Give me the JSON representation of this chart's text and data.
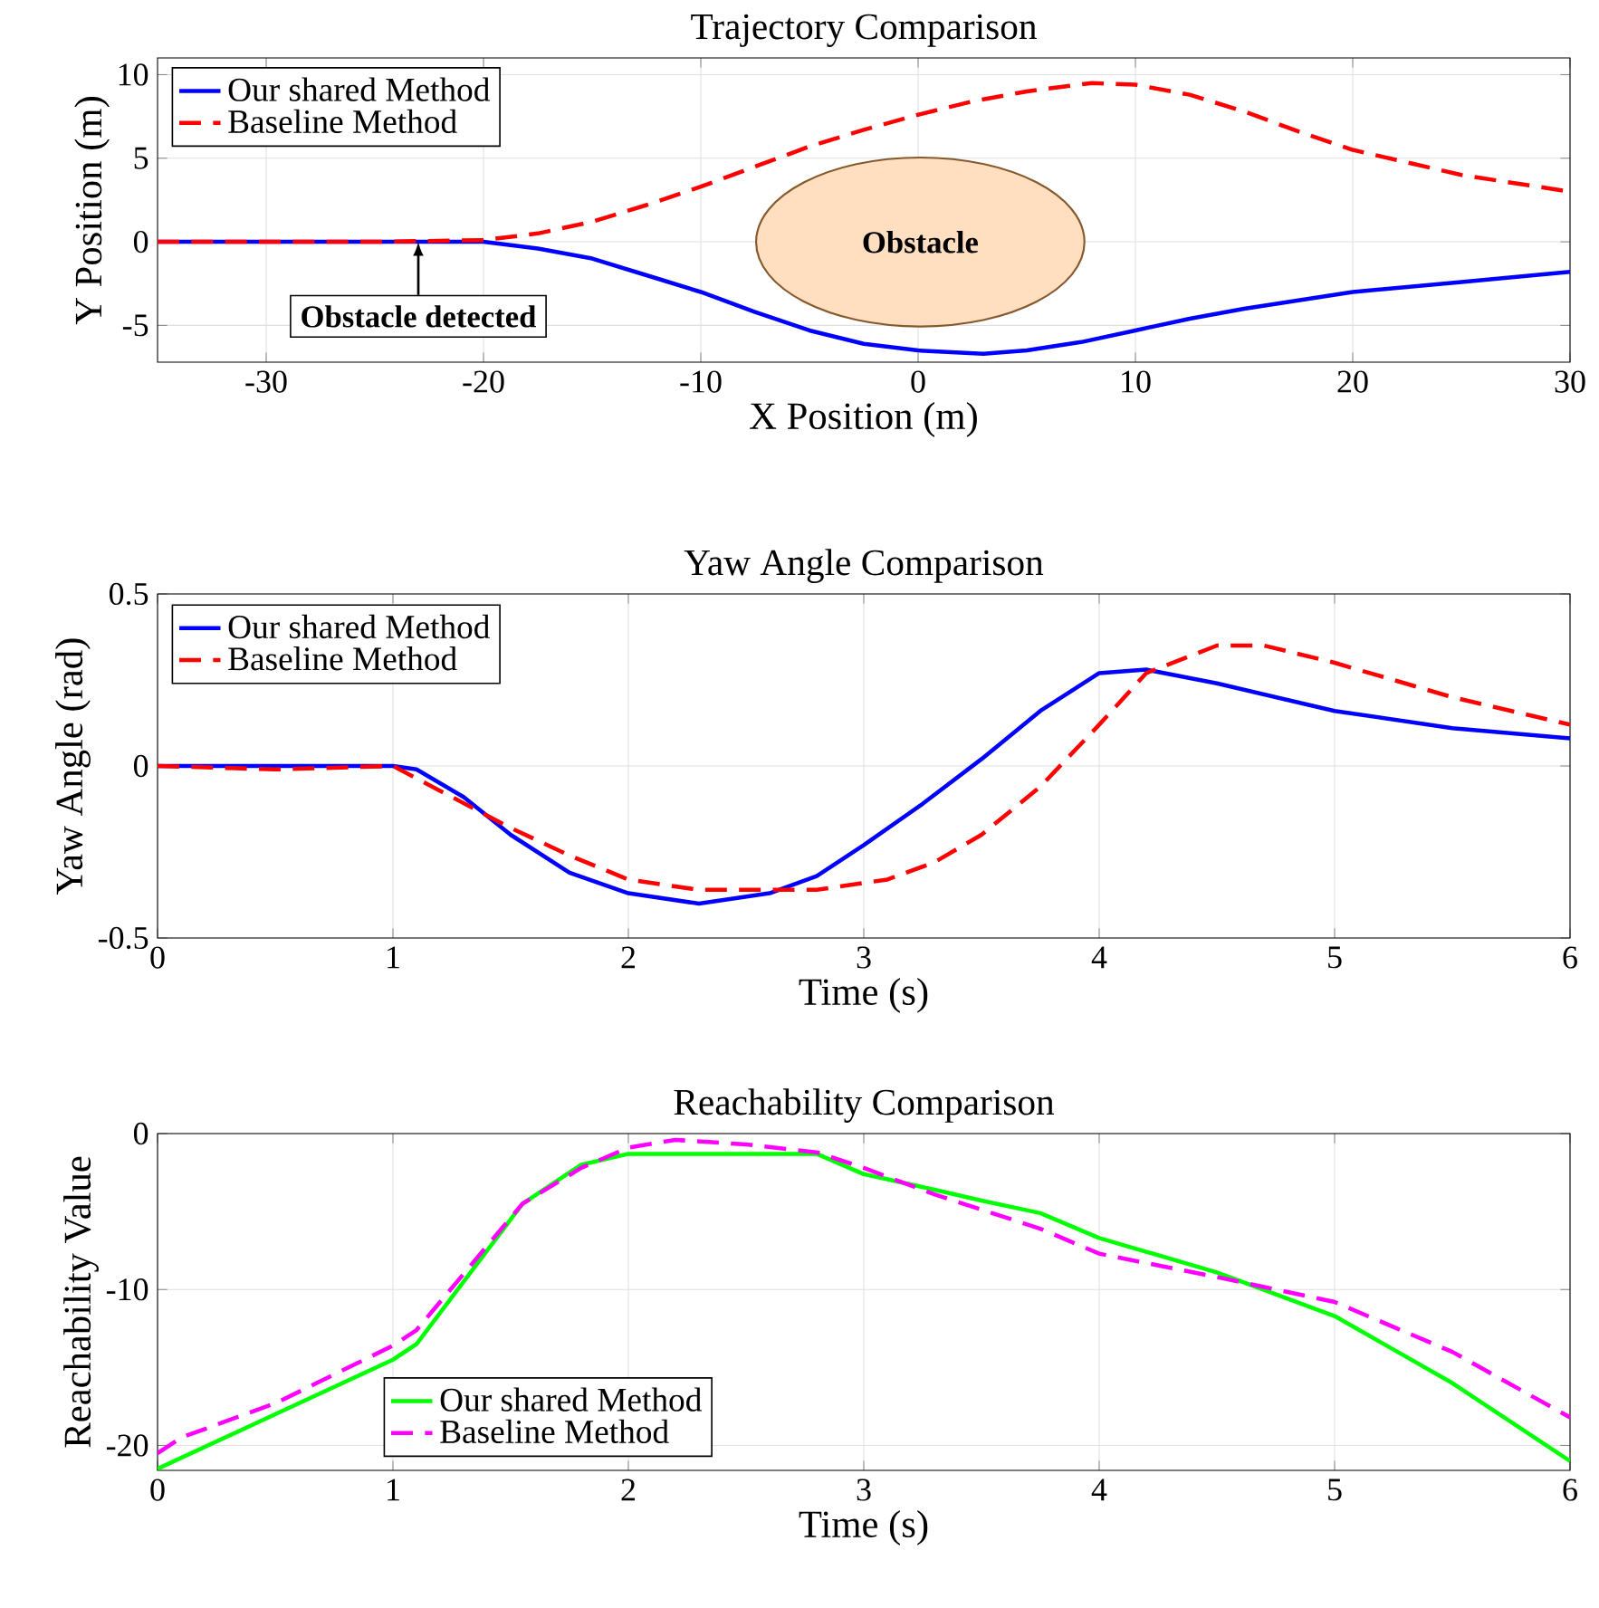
{
  "chart_data": [
    {
      "type": "line",
      "title": "Trajectory Comparison",
      "xlabel": "X Position (m)",
      "ylabel": "Y Position (m)",
      "xlim": [
        -35,
        30
      ],
      "ylim": [
        -7.2,
        11
      ],
      "xticks": [
        -30,
        -20,
        -10,
        0,
        10,
        20,
        30
      ],
      "yticks": [
        -5,
        0,
        5,
        10
      ],
      "grid": true,
      "legend": "top left",
      "marker": "none",
      "series": [
        {
          "name": "Our shared Method",
          "color": "#0000ff",
          "line_style": "solid",
          "x": [
            -35,
            -30,
            -25,
            -20,
            -17.5,
            -15,
            -12.5,
            -10,
            -7.5,
            -5,
            -2.5,
            0,
            3,
            5,
            7.5,
            10,
            12.5,
            15,
            20,
            25,
            30
          ],
          "values": [
            0,
            0,
            0,
            0,
            -0.4,
            -1,
            -2,
            -3,
            -4.2,
            -5.3,
            -6.1,
            -6.5,
            -6.7,
            -6.5,
            -6.0,
            -5.3,
            -4.6,
            -4.0,
            -3.0,
            -2.4,
            -1.8
          ]
        },
        {
          "name": "Baseline Method",
          "color": "#ff0000",
          "line_style": "dashed",
          "x": [
            -35,
            -30,
            -25,
            -20,
            -17.5,
            -15,
            -12.5,
            -10,
            -7.5,
            -5,
            -2.5,
            0,
            2.5,
            5,
            8,
            10,
            12.5,
            15,
            17.5,
            20,
            25,
            30
          ],
          "values": [
            0,
            0,
            0,
            0.1,
            0.5,
            1.2,
            2.2,
            3.3,
            4.5,
            5.7,
            6.7,
            7.6,
            8.4,
            9.0,
            9.5,
            9.4,
            8.8,
            7.8,
            6.6,
            5.5,
            4.0,
            3.0
          ]
        }
      ],
      "annotations": [
        "Obstacle",
        {
          "text": "Obstacle detected",
          "x": -23,
          "y": 0
        }
      ]
    },
    {
      "type": "line",
      "title": "Yaw Angle Comparison",
      "xlabel": "Time (s)",
      "ylabel": "Yaw Angle (rad)",
      "xlim": [
        0,
        6
      ],
      "ylim": [
        -0.5,
        0.5
      ],
      "xticks": [
        0,
        1,
        2,
        3,
        4,
        5,
        6
      ],
      "yticks": [
        -0.5,
        0,
        0.5
      ],
      "grid": true,
      "legend": "top left",
      "marker": "none",
      "series": [
        {
          "name": "Our shared Method",
          "color": "#0000ff",
          "line_style": "solid",
          "x": [
            0,
            0.5,
            1,
            1.1,
            1.3,
            1.5,
            1.75,
            2,
            2.3,
            2.6,
            2.8,
            3,
            3.25,
            3.5,
            3.75,
            4,
            4.2,
            4.5,
            5,
            5.5,
            6
          ],
          "values": [
            0,
            0,
            0,
            -0.01,
            -0.09,
            -0.2,
            -0.31,
            -0.37,
            -0.4,
            -0.37,
            -0.32,
            -0.23,
            -0.11,
            0.02,
            0.16,
            0.27,
            0.28,
            0.24,
            0.16,
            0.11,
            0.08
          ]
        },
        {
          "name": "Baseline Method",
          "color": "#ff0000",
          "line_style": "dashed",
          "x": [
            0,
            0.5,
            1,
            1.25,
            1.5,
            1.75,
            2,
            2.3,
            2.6,
            2.8,
            3.1,
            3.3,
            3.5,
            3.75,
            4,
            4.2,
            4.5,
            4.7,
            5,
            5.5,
            6
          ],
          "values": [
            0,
            -0.01,
            0,
            -0.09,
            -0.18,
            -0.26,
            -0.33,
            -0.36,
            -0.36,
            -0.36,
            -0.33,
            -0.28,
            -0.2,
            -0.06,
            0.12,
            0.27,
            0.35,
            0.35,
            0.3,
            0.2,
            0.12
          ]
        }
      ]
    },
    {
      "type": "line",
      "title": "Reachability Comparison",
      "xlabel": "Time (s)",
      "ylabel": "Reachability Value",
      "xlim": [
        0,
        6
      ],
      "ylim": [
        -21.6,
        0
      ],
      "xticks": [
        0,
        1,
        2,
        3,
        4,
        5,
        6
      ],
      "yticks": [
        -20,
        -10,
        0
      ],
      "grid": true,
      "legend": "bottom left",
      "marker": "none",
      "series": [
        {
          "name": "Our shared Method",
          "color": "#00ff00",
          "line_style": "solid",
          "x": [
            0,
            0.5,
            1,
            1.1,
            1.3,
            1.55,
            1.8,
            2,
            2.5,
            2.8,
            3,
            3.3,
            3.5,
            3.75,
            4,
            4.5,
            5,
            5.5,
            6
          ],
          "values": [
            -21.5,
            -18,
            -14.5,
            -13.5,
            -9.5,
            -4.5,
            -2,
            -1.3,
            -1.3,
            -1.3,
            -2.6,
            -3.6,
            -4.3,
            -5.1,
            -6.7,
            -8.9,
            -11.7,
            -16,
            -21
          ]
        },
        {
          "name": "Baseline Method",
          "color": "#ff00ff",
          "line_style": "dashed",
          "x": [
            0,
            0.1,
            0.5,
            1,
            1.1,
            1.3,
            1.55,
            1.8,
            2,
            2.2,
            2.5,
            2.8,
            3,
            3.3,
            3.75,
            4,
            4.5,
            5,
            5.5,
            6
          ],
          "values": [
            -20.5,
            -19.5,
            -17.3,
            -13.6,
            -12.6,
            -9,
            -4.5,
            -2.2,
            -0.9,
            -0.4,
            -0.7,
            -1.2,
            -2.2,
            -3.9,
            -6.1,
            -7.7,
            -9.2,
            -10.8,
            -14,
            -18.2
          ]
        }
      ]
    }
  ]
}
